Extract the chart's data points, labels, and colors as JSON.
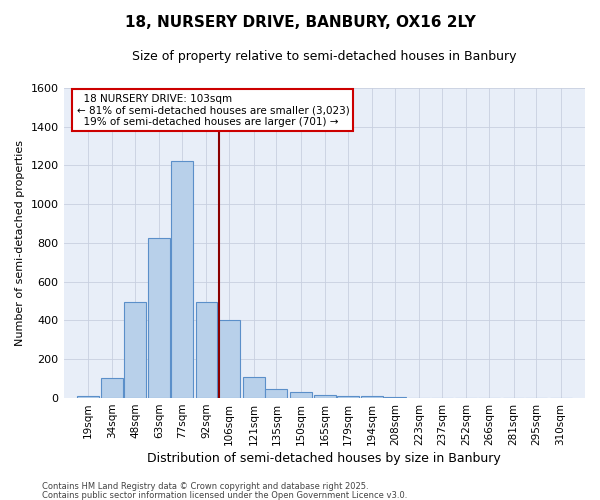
{
  "title1": "18, NURSERY DRIVE, BANBURY, OX16 2LY",
  "title2": "Size of property relative to semi-detached houses in Banbury",
  "xlabel": "Distribution of semi-detached houses by size in Banbury",
  "ylabel": "Number of semi-detached properties",
  "bar_labels": [
    "19sqm",
    "34sqm",
    "48sqm",
    "63sqm",
    "77sqm",
    "92sqm",
    "106sqm",
    "121sqm",
    "135sqm",
    "150sqm",
    "165sqm",
    "179sqm",
    "194sqm",
    "208sqm",
    "223sqm",
    "237sqm",
    "252sqm",
    "266sqm",
    "281sqm",
    "295sqm",
    "310sqm"
  ],
  "bar_values": [
    10,
    105,
    495,
    825,
    1220,
    495,
    400,
    110,
    48,
    30,
    15,
    10,
    10,
    5,
    0,
    0,
    0,
    0,
    0,
    0,
    0
  ],
  "bar_color": "#b8d0ea",
  "bar_edge_color": "#5b8fc9",
  "property_label": "18 NURSERY DRIVE: 103sqm",
  "pct_smaller": 81,
  "count_smaller": 3023,
  "pct_larger": 19,
  "count_larger": 701,
  "vline_color": "#8b0000",
  "annotation_box_color": "#cc0000",
  "background_color": "#e8eef8",
  "grid_color": "#c8cfe0",
  "footer1": "Contains HM Land Registry data © Crown copyright and database right 2025.",
  "footer2": "Contains public sector information licensed under the Open Government Licence v3.0.",
  "ylim": [
    0,
    1600
  ],
  "yticks": [
    0,
    200,
    400,
    600,
    800,
    1000,
    1200,
    1400,
    1600
  ],
  "bin_width": 14,
  "centers": [
    19,
    34,
    48,
    63,
    77,
    92,
    106,
    121,
    135,
    150,
    165,
    179,
    194,
    208,
    223,
    237,
    252,
    266,
    281,
    295,
    310
  ],
  "vline_x": 99.5
}
